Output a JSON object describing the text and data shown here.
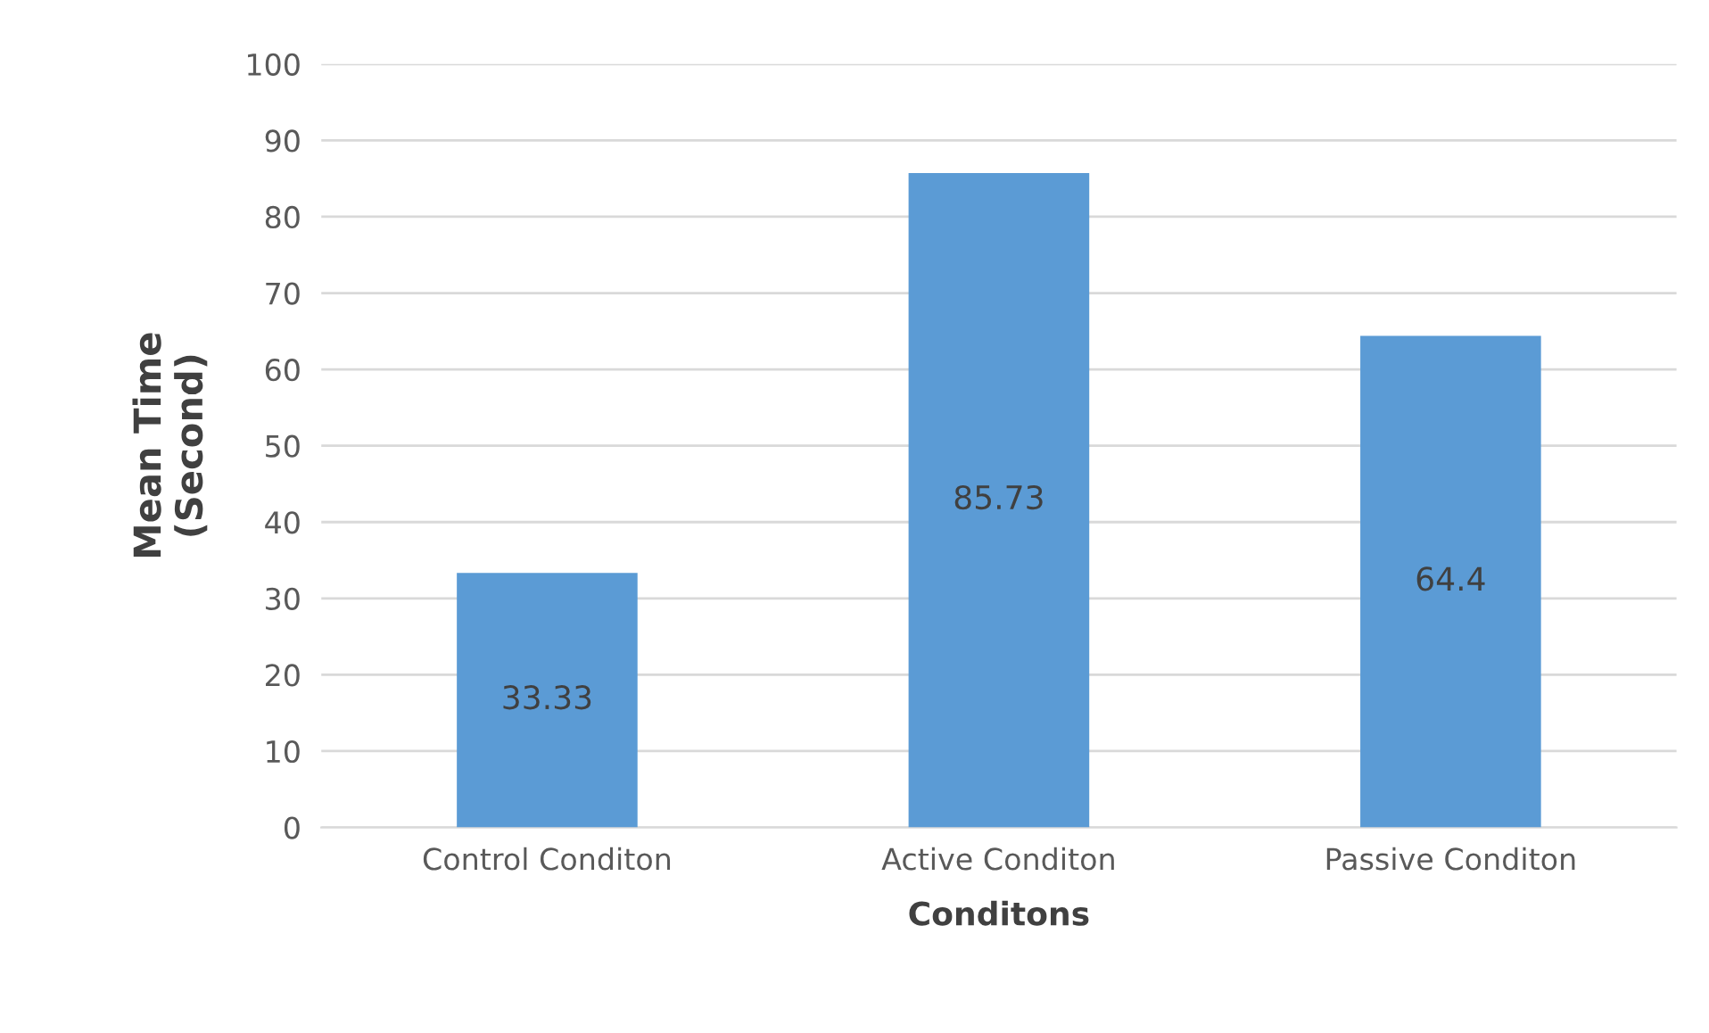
{
  "chart_data": {
    "type": "bar",
    "xlabel": "Conditons",
    "ylabel": "Mean Time\n(Second)",
    "categories": [
      "Control Conditon",
      "Active Conditon",
      "Passive Conditon"
    ],
    "values": [
      33.33,
      85.73,
      64.4
    ],
    "color": "#5b9bd5",
    "ylim": [
      0,
      100
    ],
    "yticks": [
      0,
      10,
      20,
      30,
      40,
      50,
      60,
      70,
      80,
      90,
      100
    ],
    "grid": "y",
    "data_labels": true,
    "legend": false
  }
}
